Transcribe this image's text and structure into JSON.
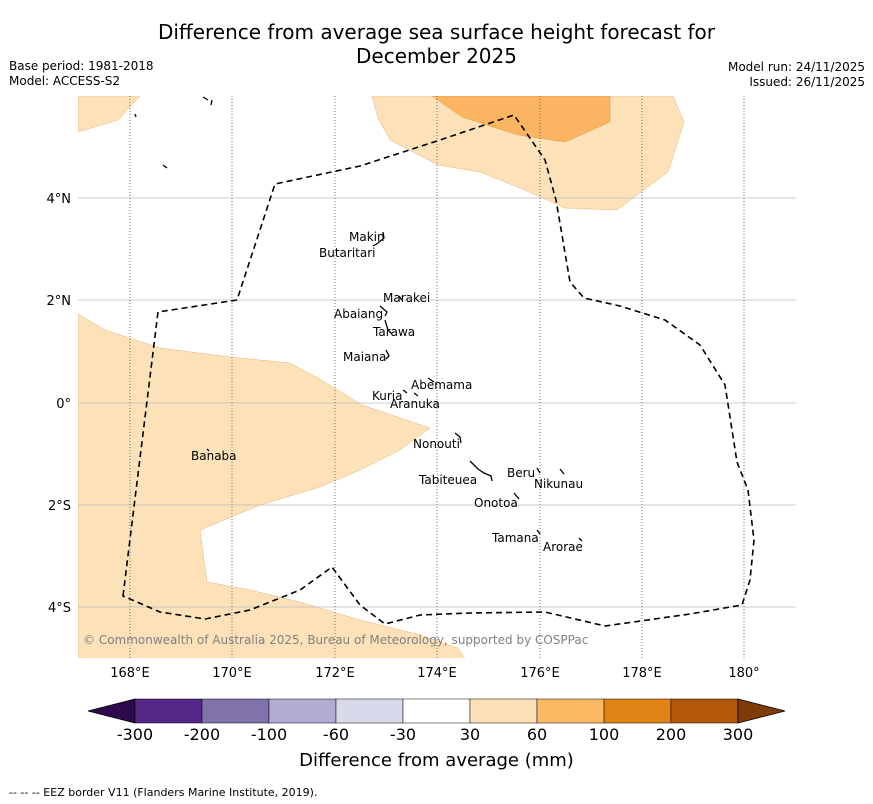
{
  "title": {
    "line1": "Difference from average sea surface height forecast for",
    "line2": "December 2025"
  },
  "meta_left": {
    "base_period": "Base period: 1981-2018",
    "model": "Model: ACCESS-S2"
  },
  "meta_right": {
    "model_run": "Model run: 24/11/2025",
    "issued": "Issued: 26/11/2025"
  },
  "map": {
    "lon_labels": [
      "168°E",
      "170°E",
      "172°E",
      "174°E",
      "176°E",
      "178°E",
      "180°"
    ],
    "lat_labels": [
      "4°N",
      "2°N",
      "0°",
      "2°S",
      "4°S"
    ],
    "copyright": "© Commonwealth of Australia 2025, Bureau of Meteorology, supported by COSPPac",
    "places": [
      {
        "name": "Makin"
      },
      {
        "name": "Butaritari"
      },
      {
        "name": "Marakei"
      },
      {
        "name": "Abaiang"
      },
      {
        "name": "Tarawa"
      },
      {
        "name": "Maiana"
      },
      {
        "name": "Abemama"
      },
      {
        "name": "Kuria"
      },
      {
        "name": "Aranuka"
      },
      {
        "name": "Nonouti"
      },
      {
        "name": "Banaba"
      },
      {
        "name": "Beru"
      },
      {
        "name": "Nikunau"
      },
      {
        "name": "Tabiteuea"
      },
      {
        "name": "Onotoa"
      },
      {
        "name": "Tamana"
      },
      {
        "name": "Arorae"
      }
    ],
    "colors": {
      "band_30_60": "#fde2b9",
      "band_60_100": "#fbb562",
      "eez_line": "#000000"
    }
  },
  "colorbar": {
    "ticks": [
      "-300",
      "-200",
      "-100",
      "-60",
      "-30",
      "30",
      "60",
      "100",
      "200",
      "300"
    ],
    "colors": [
      "#2d0a4e",
      "#542788",
      "#8073ac",
      "#b2abd2",
      "#d8daeb",
      "#ffffff",
      "#fee0b6",
      "#fdb863",
      "#e08214",
      "#b35806",
      "#7f3b08"
    ],
    "label": "Difference from average (mm)"
  },
  "footnote": "--  --  -- EEZ border V11 (Flanders Marine Institute, 2019)."
}
